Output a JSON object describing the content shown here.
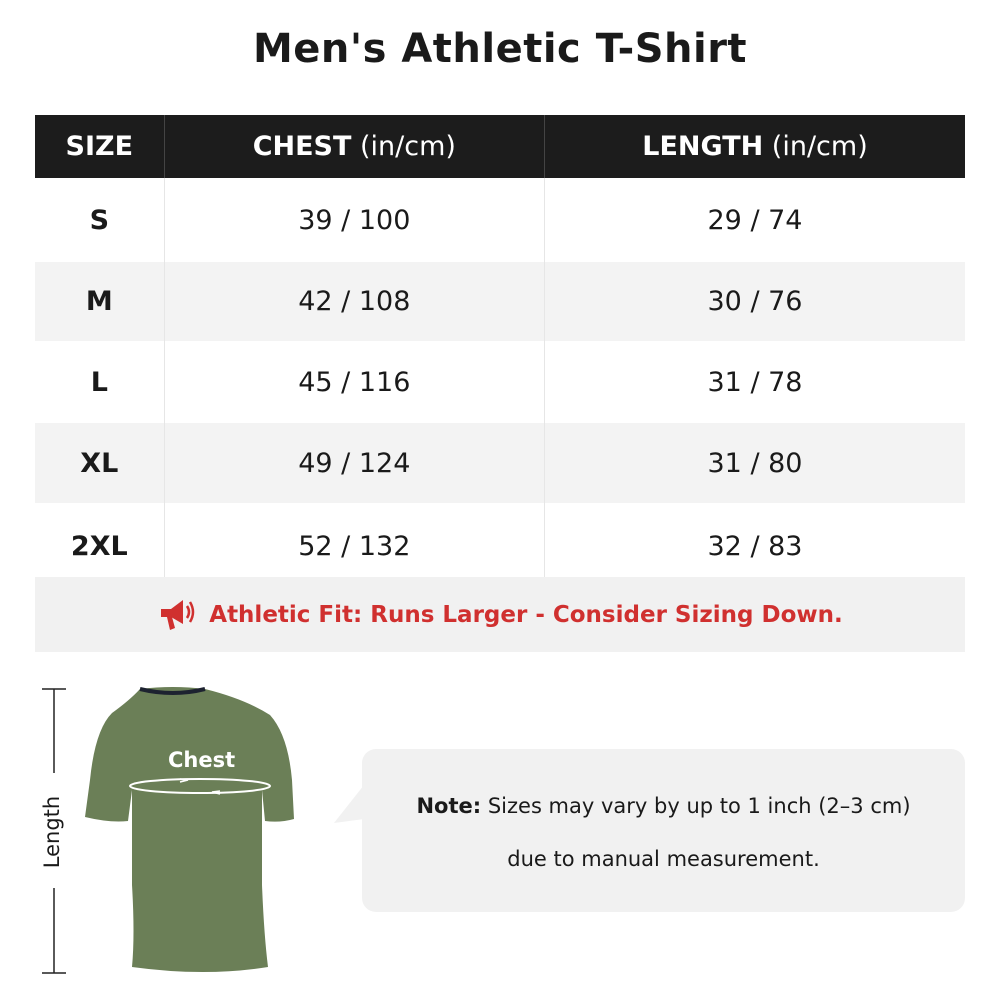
{
  "title": "Men's Athletic T-Shirt",
  "table": {
    "headers": [
      {
        "label": "SIZE",
        "unit": ""
      },
      {
        "label": "CHEST",
        "unit": " (in/cm)"
      },
      {
        "label": "LENGTH",
        "unit": " (in/cm)"
      }
    ],
    "rows": [
      {
        "size": "S",
        "chest": "39 / 100",
        "length": "29 / 74"
      },
      {
        "size": "M",
        "chest": "42 / 108",
        "length": "30 / 76"
      },
      {
        "size": "L",
        "chest": "45 / 116",
        "length": "31 / 78"
      },
      {
        "size": "XL",
        "chest": "49 / 124",
        "length": "31 / 80"
      },
      {
        "size": "2XL",
        "chest": "52 / 132",
        "length": "32 / 83"
      }
    ]
  },
  "notice": {
    "icon": "megaphone-icon",
    "text": "Athletic Fit: Runs Larger - Consider Sizing Down.",
    "color": "#d0302f"
  },
  "diagram": {
    "length_label": "Length",
    "chest_label": "Chest",
    "shirt_color": "#6b7f57"
  },
  "note": {
    "label": "Note:",
    "line1": " Sizes may vary by up to 1 inch (2–3 cm)",
    "line2": "due to manual measurement."
  }
}
